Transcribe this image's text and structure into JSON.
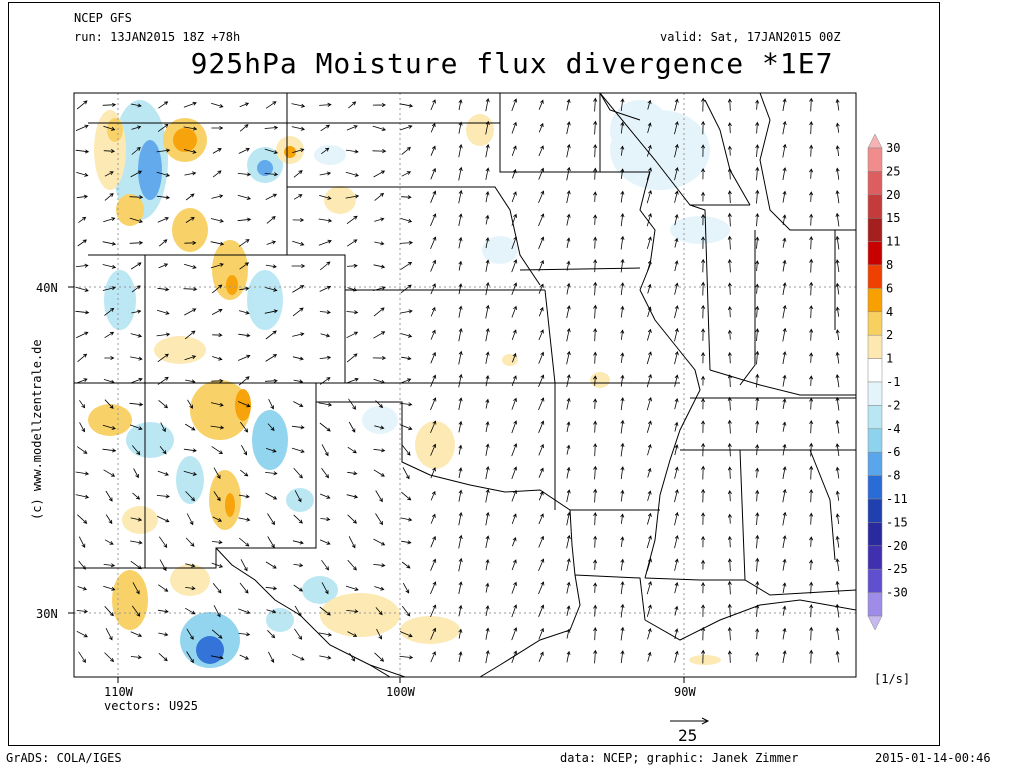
{
  "header": {
    "model": "NCEP GFS",
    "run": "run: 13JAN2015 18Z +78h",
    "valid": "valid: Sat, 17JAN2015 00Z",
    "title": "925hPa Moisture flux divergence *1E7"
  },
  "side_credit": "(c) www.modellzentrale.de",
  "axes": {
    "lat_labels": [
      "40N",
      "30N"
    ],
    "lon_labels": [
      "110W",
      "100W",
      "90W"
    ]
  },
  "vectors_label": "vectors: U925",
  "vector_scale": {
    "value": "25"
  },
  "legend": {
    "unit": "[1/s]",
    "levels": [
      "30",
      "25",
      "20",
      "15",
      "11",
      "8",
      "6",
      "4",
      "2",
      "1",
      "-1",
      "-2",
      "-4",
      "-6",
      "-8",
      "-11",
      "-15",
      "-20",
      "-25",
      "-30"
    ],
    "colors": [
      "#f7b3b3",
      "#f08c8c",
      "#dd5e5e",
      "#c43b3b",
      "#a51f1f",
      "#c80000",
      "#f04000",
      "#f7a000",
      "#f8d060",
      "#fce8b0",
      "#ffffff",
      "#e4f4fb",
      "#b8e6f3",
      "#8ed3ee",
      "#5aa6ea",
      "#2a6cd6",
      "#2040b0",
      "#2a2aa0",
      "#4030b0",
      "#6050d0",
      "#9e8ce8",
      "#c8b8f0"
    ]
  },
  "footer": {
    "left": "GrADS: COLA/IGES",
    "center": "data: NCEP; graphic: Janek Zimmer",
    "right": "2015-01-14-00:46"
  }
}
